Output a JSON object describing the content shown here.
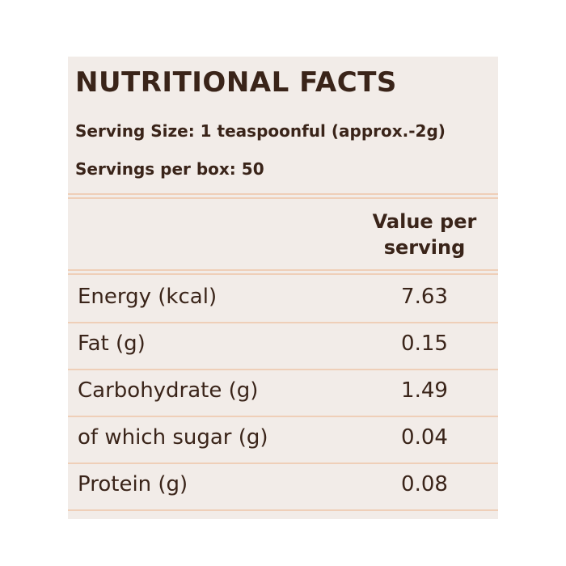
{
  "header": {
    "title": "NUTRITIONAL FACTS",
    "serving_size": "Serving Size: 1 teaspoonful (approx.-2g)",
    "servings_per_box": "Servings per box: 50"
  },
  "table": {
    "column_header": "Value per serving",
    "rows": [
      [
        "Energy (kcal)",
        "7.63"
      ],
      [
        "Fat (g)",
        "0.15"
      ],
      [
        "Carbohydrate (g)",
        "1.49"
      ],
      [
        "of which sugar (g)",
        "0.04"
      ],
      [
        "Protein (g)",
        "0.08"
      ]
    ]
  }
}
